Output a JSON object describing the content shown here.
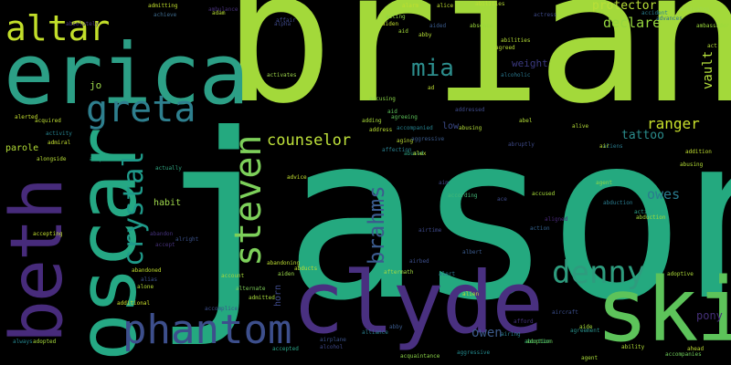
{
  "words": [
    {
      "text": "jason",
      "color": "#24a97f"
    },
    {
      "text": "brian",
      "color": "#a3d93a"
    },
    {
      "text": "erica",
      "color": "#2c9f86"
    },
    {
      "text": "oscar",
      "color": "#25a884"
    },
    {
      "text": "clyde",
      "color": "#493080"
    },
    {
      "text": "ski",
      "color": "#5dc35a"
    },
    {
      "text": "beth",
      "color": "#472b7b"
    },
    {
      "text": "phantom",
      "color": "#3d4f8c"
    },
    {
      "text": "steven",
      "color": "#7dd05a"
    },
    {
      "text": "altar",
      "color": "#c2de2a"
    },
    {
      "text": "greta",
      "color": "#2e7f8e"
    },
    {
      "text": "crystal",
      "color": "#1f9a8a"
    },
    {
      "text": "denny",
      "color": "#2e9c7e"
    },
    {
      "text": "brahms",
      "color": "#3b5b8d"
    },
    {
      "text": "mia",
      "color": "#2c8d8c"
    },
    {
      "text": "counselor",
      "color": "#bfe23b"
    },
    {
      "text": "protector",
      "color": "#b9df37"
    },
    {
      "text": "declare",
      "color": "#95d63e"
    },
    {
      "text": "ranger",
      "color": "#c8e02b"
    },
    {
      "text": "vault",
      "color": "#b4de3c"
    },
    {
      "text": "owes",
      "color": "#2a7b8e"
    },
    {
      "text": "tattoo",
      "color": "#2b8c8c"
    },
    {
      "text": "owen",
      "color": "#3d5b8b"
    },
    {
      "text": "pony",
      "color": "#453078"
    },
    {
      "text": "weight",
      "color": "#3b3a80"
    },
    {
      "text": "jo",
      "color": "#9edb4b"
    },
    {
      "text": "parole",
      "color": "#b2dc36"
    },
    {
      "text": "habit",
      "color": "#9fd84c"
    },
    {
      "text": "low",
      "color": "#3c4b8a"
    },
    {
      "text": "horn",
      "color": "#3e4a8a"
    },
    {
      "text": "accident",
      "color": "#2a7f8e"
    },
    {
      "text": "accepted",
      "color": "#2aa386"
    },
    {
      "text": "accompanies",
      "color": "#6fcd5a"
    },
    {
      "text": "acquaintance",
      "color": "#8bd548"
    },
    {
      "text": "aggressive",
      "color": "#23898d"
    },
    {
      "text": "absence",
      "color": "#9bd93a"
    },
    {
      "text": "acting",
      "color": "#8fd646"
    },
    {
      "text": "accused",
      "color": "#a6db3a"
    },
    {
      "text": "advice",
      "color": "#c4e030"
    },
    {
      "text": "agent",
      "color": "#8dd548"
    },
    {
      "text": "abduction",
      "color": "#a4d93b"
    },
    {
      "text": "adoptive",
      "color": "#aedb39"
    },
    {
      "text": "ability",
      "color": "#b1dc38"
    },
    {
      "text": "agreement",
      "color": "#29918c"
    },
    {
      "text": "abortion",
      "color": "#36b87d"
    },
    {
      "text": "airport",
      "color": "#26a785"
    },
    {
      "text": "actually",
      "color": "#30a581"
    },
    {
      "text": "accept",
      "color": "#453078"
    },
    {
      "text": "abandoned",
      "color": "#c1df2e"
    },
    {
      "text": "account",
      "color": "#a7d93a"
    },
    {
      "text": "abandoning",
      "color": "#bcdc33"
    },
    {
      "text": "aiden",
      "color": "#9ad74a"
    },
    {
      "text": "additional",
      "color": "#cbe02c"
    },
    {
      "text": "alternate",
      "color": "#7fd05a"
    },
    {
      "text": "admitted",
      "color": "#a8db3b"
    },
    {
      "text": "aftermath",
      "color": "#a2d842"
    },
    {
      "text": "according",
      "color": "#43b878"
    },
    {
      "text": "accepting",
      "color": "#c2de30"
    },
    {
      "text": "alongside",
      "color": "#b8dd36"
    },
    {
      "text": "acquired",
      "color": "#bede33"
    },
    {
      "text": "alerted",
      "color": "#c5e030"
    },
    {
      "text": "achieve",
      "color": "#3e6a8c"
    },
    {
      "text": "accusing",
      "color": "#8ad548"
    },
    {
      "text": "agreeing",
      "color": "#5dc35a"
    },
    {
      "text": "activates",
      "color": "#9fd84c"
    },
    {
      "text": "adding",
      "color": "#a9db3a"
    },
    {
      "text": "alive",
      "color": "#b6dd38"
    },
    {
      "text": "acting",
      "color": "#2c9f86"
    },
    {
      "text": "act",
      "color": "#b3dc37"
    },
    {
      "text": "ad",
      "color": "#bede33"
    },
    {
      "text": "airbed",
      "color": "#3d4f8c"
    },
    {
      "text": "albert",
      "color": "#3b5b8d"
    },
    {
      "text": "action",
      "color": "#33628d"
    },
    {
      "text": "alcohol",
      "color": "#3f4889"
    },
    {
      "text": "always",
      "color": "#25858e"
    },
    {
      "text": "adopted",
      "color": "#a7db3c"
    },
    {
      "text": "admiral",
      "color": "#c4e030"
    },
    {
      "text": "activity",
      "color": "#26828e"
    },
    {
      "text": "abilities",
      "color": "#b8de36"
    },
    {
      "text": "advances",
      "color": "#2e6d8e"
    },
    {
      "text": "ambassador",
      "color": "#9bd93c"
    },
    {
      "text": "actress",
      "color": "#3e4a89"
    },
    {
      "text": "activates",
      "color": "#9fd84c"
    },
    {
      "text": "abusing",
      "color": "#b5de36"
    },
    {
      "text": "addition",
      "color": "#c0df30"
    },
    {
      "text": "adoption",
      "color": "#6ccd5a"
    },
    {
      "text": "aircraft",
      "color": "#3b4e8b"
    },
    {
      "text": "alliance",
      "color": "#2a7e8e"
    },
    {
      "text": "alien",
      "color": "#bade35"
    },
    {
      "text": "alone",
      "color": "#b7dd36"
    },
    {
      "text": "alias",
      "color": "#3d4f8c"
    },
    {
      "text": "abandon",
      "color": "#45327d"
    },
    {
      "text": "accompanied",
      "color": "#26828e"
    },
    {
      "text": "alpha",
      "color": "#3e4989"
    },
    {
      "text": "abducts",
      "color": "#bbde33"
    },
    {
      "text": "admitting",
      "color": "#c2df2e"
    },
    {
      "text": "alice",
      "color": "#c0df31"
    },
    {
      "text": "adam",
      "color": "#b8dd36"
    },
    {
      "text": "aid",
      "color": "#a3d93a"
    },
    {
      "text": "abby",
      "color": "#b5dd37"
    },
    {
      "text": "abusing",
      "color": "#b2dc38"
    },
    {
      "text": "abused",
      "color": "#2e9c7e"
    },
    {
      "text": "ambulance",
      "color": "#47307a"
    },
    {
      "text": "airplane",
      "color": "#3b528b"
    },
    {
      "text": "alert",
      "color": "#2a778e"
    },
    {
      "text": "afford",
      "color": "#45327d"
    },
    {
      "text": "affair",
      "color": "#3f4a8a"
    },
    {
      "text": "aided",
      "color": "#3b5b8d"
    },
    {
      "text": "abruptly",
      "color": "#3e4a89"
    },
    {
      "text": "alcoholic",
      "color": "#2a788e"
    },
    {
      "text": "aliens",
      "color": "#2a7b8e"
    },
    {
      "text": "aging",
      "color": "#bcdd35"
    },
    {
      "text": "accomplice",
      "color": "#3d4f8c"
    },
    {
      "text": "airing",
      "color": "#2a7f8e"
    },
    {
      "text": "abel",
      "color": "#b4de37"
    },
    {
      "text": "alex",
      "color": "#bede33"
    },
    {
      "text": "aligned",
      "color": "#49297a"
    },
    {
      "text": "abby",
      "color": "#3b5b8d"
    },
    {
      "text": "aid",
      "color": "#5dc35a"
    },
    {
      "text": "airtime",
      "color": "#3e4989"
    },
    {
      "text": "alarm",
      "color": "#c1df2e"
    },
    {
      "text": "affection",
      "color": "#2a7f8e"
    },
    {
      "text": "agreed",
      "color": "#b8de36"
    },
    {
      "text": "aim",
      "color": "#3e4a89"
    },
    {
      "text": "aide",
      "color": "#a8db3b"
    },
    {
      "text": "aiden",
      "color": "#c2df2e"
    },
    {
      "text": "addressed",
      "color": "#3e4a89"
    },
    {
      "text": "aggressive",
      "color": "#3b5b8d"
    },
    {
      "text": "abilities",
      "color": "#b5de36"
    },
    {
      "text": "address",
      "color": "#bbde33"
    },
    {
      "text": "ace",
      "color": "#3e4a89"
    },
    {
      "text": "air",
      "color": "#b8dd36"
    },
    {
      "text": "ahead",
      "color": "#c0df31"
    },
    {
      "text": "agent",
      "color": "#a9db3a"
    },
    {
      "text": "abduction",
      "color": "#2a7b8e"
    },
    {
      "text": "alright",
      "color": "#3b528b"
    },
    {
      "text": "absolutely",
      "color": "#45327d"
    }
  ]
}
